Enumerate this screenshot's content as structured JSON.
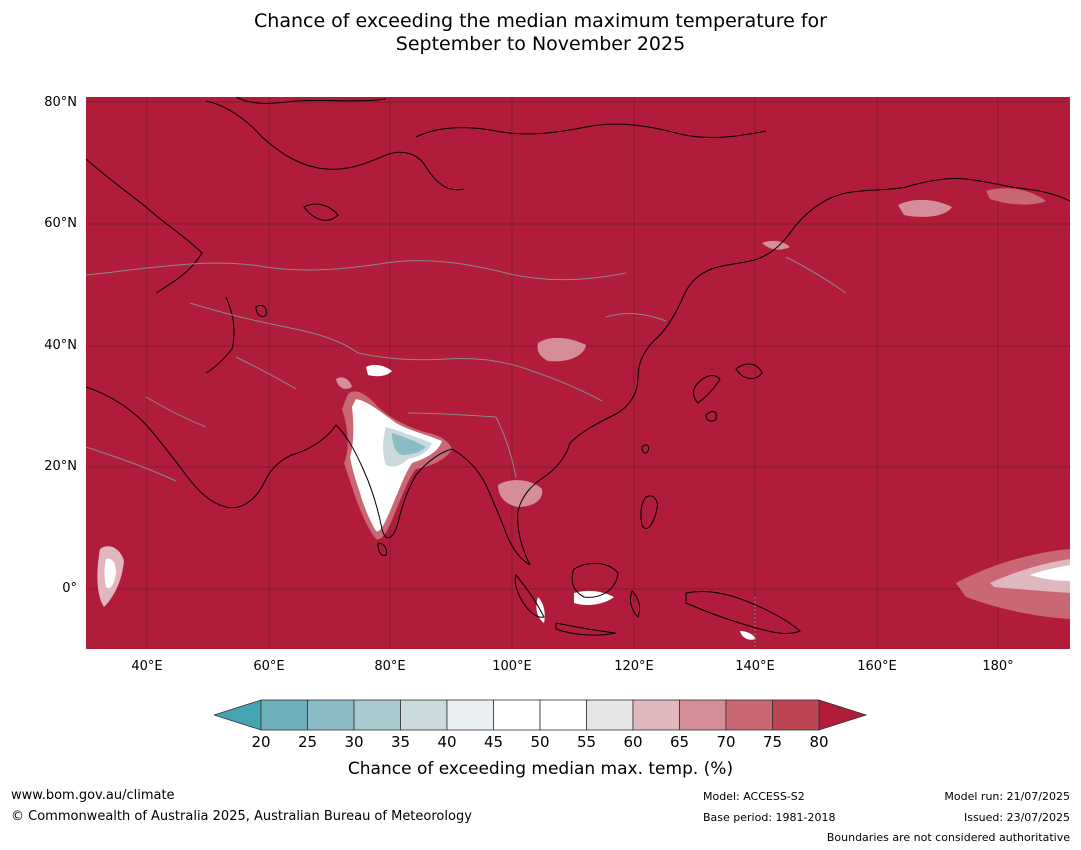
{
  "title_line1": "Chance of exceeding the median maximum temperature for",
  "title_line2": "September to November 2025",
  "lat_labels": [
    "80°N",
    "60°N",
    "40°N",
    "20°N",
    "0°"
  ],
  "lon_labels": [
    "40°E",
    "60°E",
    "80°E",
    "100°E",
    "120°E",
    "140°E",
    "160°E",
    "180°"
  ],
  "colorbar": {
    "ticks": [
      "20",
      "25",
      "30",
      "35",
      "40",
      "45",
      "50",
      "55",
      "60",
      "65",
      "70",
      "75",
      "80"
    ],
    "colors": [
      "#45a3b2",
      "#6dafbb",
      "#8bbcc6",
      "#a9c9cf",
      "#cadadc",
      "#eaf0f1",
      "#ffffff",
      "#ffffff",
      "#e6e6e6",
      "#e0b7bd",
      "#d58e97",
      "#c96874",
      "#bc4454",
      "#b01c39"
    ],
    "label": "Chance of exceeding median max. temp. (%)"
  },
  "footer": {
    "website": "www.bom.gov.au/climate",
    "copyright": "© Commonwealth of Australia 2025, Australian Bureau of Meteorology",
    "model": "Model: ACCESS-S2",
    "base_period": "Base period: 1981-2018",
    "model_run": "Model run: 21/07/2025",
    "issued": "Issued: 23/07/2025",
    "disclaimer": "Boundaries are not considered authoritative"
  },
  "colors": {
    "map_background": "#b01c39",
    "grid": "#7d1a2c",
    "coast": "#000000",
    "borders": "#8a8a8a"
  }
}
